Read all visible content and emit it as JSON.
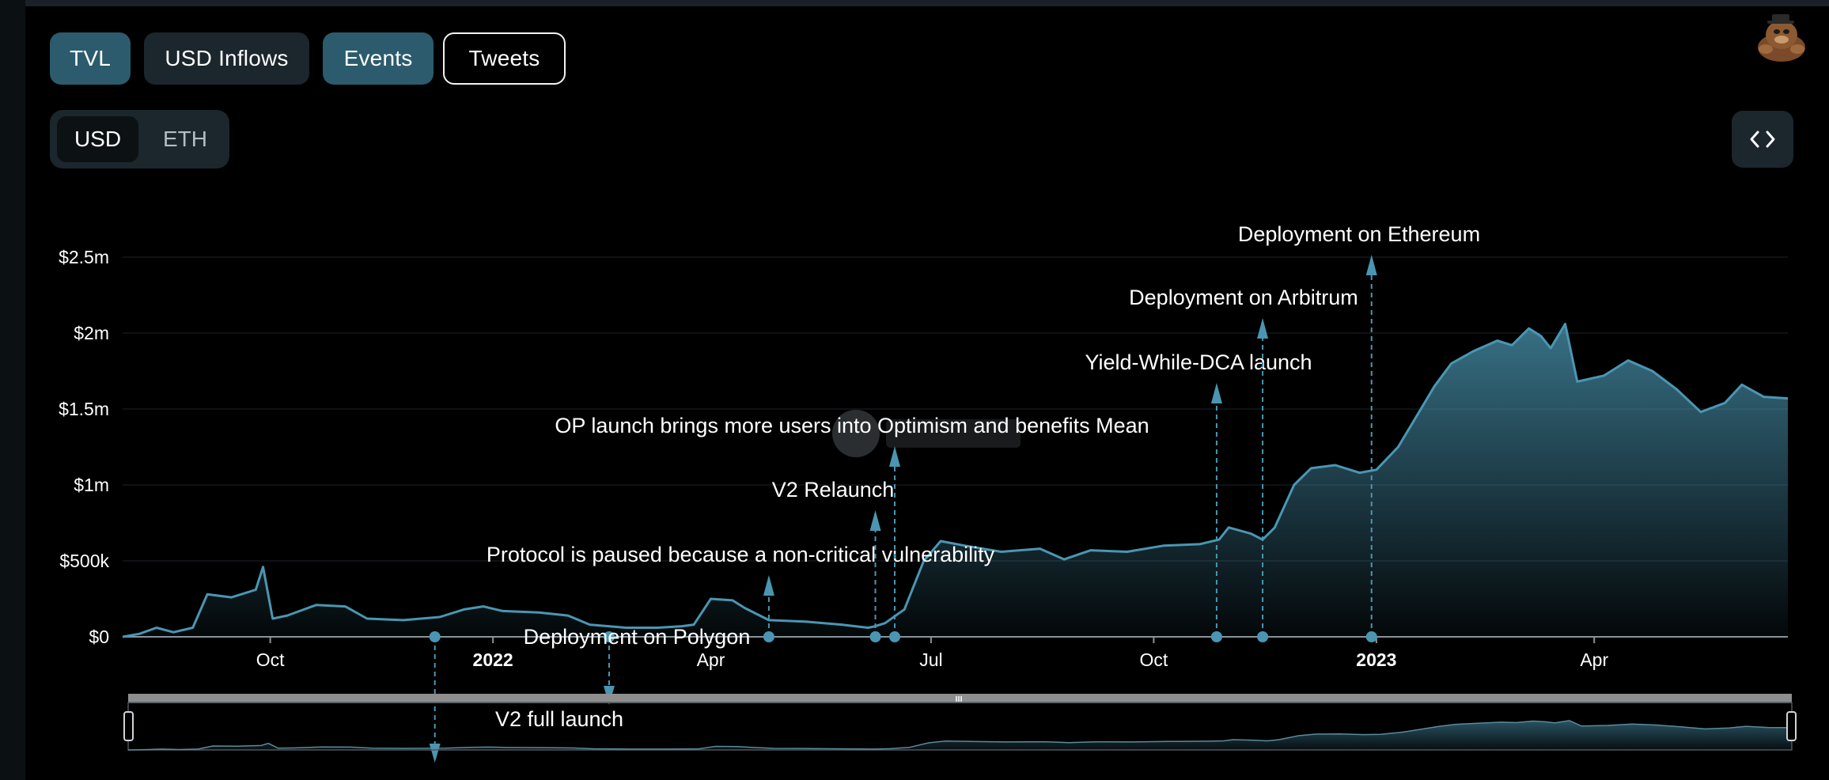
{
  "tabs": [
    {
      "label": "TVL",
      "state": "active"
    },
    {
      "label": "USD Inflows",
      "state": "inactive"
    },
    {
      "label": "Events",
      "state": "active"
    },
    {
      "label": "Tweets",
      "state": "outlined"
    }
  ],
  "denomination": {
    "options": [
      "USD",
      "ETH"
    ],
    "selected": "USD"
  },
  "embed_button": {
    "icon": "code-icon"
  },
  "avatar": {
    "icon": "llama-mascot-icon"
  },
  "colors": {
    "accent": "#4a96b2",
    "active_button": "#2b5b6d",
    "inactive_button": "#1b262d"
  },
  "chart_data": {
    "type": "area",
    "y_ticks": [
      {
        "label": "$0",
        "value": 0
      },
      {
        "label": "$500k",
        "value": 500000
      },
      {
        "label": "$1m",
        "value": 1000000
      },
      {
        "label": "$1.5m",
        "value": 1500000
      },
      {
        "label": "$2m",
        "value": 2000000
      },
      {
        "label": "$2.5m",
        "value": 2500000
      }
    ],
    "ylim": [
      0,
      2500000
    ],
    "xlim": [
      "2021-08-01",
      "2023-06-20"
    ],
    "x_ticks": [
      {
        "label": "Oct",
        "date": "2021-10-01",
        "bold": false
      },
      {
        "label": "2022",
        "date": "2022-01-01",
        "bold": true
      },
      {
        "label": "Apr",
        "date": "2022-04-01",
        "bold": false
      },
      {
        "label": "Jul",
        "date": "2022-07-01",
        "bold": false
      },
      {
        "label": "Oct",
        "date": "2022-10-01",
        "bold": false
      },
      {
        "label": "2023",
        "date": "2023-01-01",
        "bold": true
      },
      {
        "label": "Apr",
        "date": "2023-04-01",
        "bold": false
      }
    ],
    "grid": true,
    "series": [
      {
        "x": [
          "2021-08-01",
          "2021-08-08",
          "2021-08-15",
          "2021-08-22",
          "2021-08-30",
          "2021-09-05",
          "2021-09-15",
          "2021-09-25",
          "2021-09-28",
          "2021-10-02",
          "2021-10-08",
          "2021-10-20",
          "2021-11-01",
          "2021-11-10",
          "2021-11-25",
          "2021-12-10",
          "2021-12-20",
          "2021-12-28",
          "2022-01-05",
          "2022-01-20",
          "2022-02-01",
          "2022-02-10",
          "2022-02-25",
          "2022-03-10",
          "2022-03-20",
          "2022-03-25",
          "2022-04-01",
          "2022-04-10",
          "2022-04-15",
          "2022-04-25",
          "2022-05-10",
          "2022-05-25",
          "2022-06-05",
          "2022-06-08",
          "2022-06-12",
          "2022-06-20",
          "2022-06-28",
          "2022-07-05",
          "2022-07-15",
          "2022-07-30",
          "2022-08-15",
          "2022-08-25",
          "2022-09-05",
          "2022-09-20",
          "2022-10-05",
          "2022-10-20",
          "2022-10-28",
          "2022-11-01",
          "2022-11-10",
          "2022-11-15",
          "2022-11-20",
          "2022-11-28",
          "2022-12-05",
          "2022-12-15",
          "2022-12-25",
          "2023-01-01",
          "2023-01-10",
          "2023-01-25",
          "2023-02-01",
          "2023-02-10",
          "2023-02-20",
          "2023-02-26",
          "2023-03-05",
          "2023-03-10",
          "2023-03-14",
          "2023-03-20",
          "2023-03-25",
          "2023-04-05",
          "2023-04-15",
          "2023-04-25",
          "2023-05-05",
          "2023-05-15",
          "2023-05-25",
          "2023-06-01",
          "2023-06-10",
          "2023-06-20"
        ],
        "values": [
          0,
          20000,
          60000,
          30000,
          60000,
          280000,
          260000,
          310000,
          460000,
          120000,
          140000,
          210000,
          200000,
          120000,
          110000,
          130000,
          180000,
          200000,
          170000,
          160000,
          140000,
          80000,
          60000,
          60000,
          70000,
          80000,
          250000,
          240000,
          190000,
          110000,
          100000,
          80000,
          60000,
          70000,
          90000,
          180000,
          500000,
          630000,
          600000,
          560000,
          580000,
          510000,
          570000,
          560000,
          600000,
          610000,
          640000,
          720000,
          680000,
          640000,
          720000,
          1000000,
          1110000,
          1130000,
          1080000,
          1100000,
          1250000,
          1650000,
          1800000,
          1880000,
          1950000,
          1920000,
          2030000,
          1980000,
          1900000,
          2060000,
          1680000,
          1720000,
          1820000,
          1750000,
          1630000,
          1480000,
          1540000,
          1660000,
          1580000,
          1570000
        ]
      }
    ],
    "events": [
      {
        "label": "V2 full launch",
        "date": "2021-12-08",
        "direction": "down"
      },
      {
        "label": "Deployment on Polygon",
        "date": "2022-02-18",
        "direction": "down"
      },
      {
        "label": "Protocol is paused because a non-critical vulnerability",
        "date": "2022-04-25",
        "direction": "up"
      },
      {
        "label": "V2 Relaunch",
        "date": "2022-06-08",
        "direction": "up"
      },
      {
        "label": "OP launch brings more users into Optimism and benefits Mean",
        "date": "2022-06-16",
        "direction": "up"
      },
      {
        "label": "Yield-While-DCA launch",
        "date": "2022-10-27",
        "direction": "up"
      },
      {
        "label": "Deployment on Arbitrum",
        "date": "2022-11-15",
        "direction": "up"
      },
      {
        "label": "Deployment on Ethereum",
        "date": "2022-12-30",
        "direction": "up"
      }
    ]
  }
}
